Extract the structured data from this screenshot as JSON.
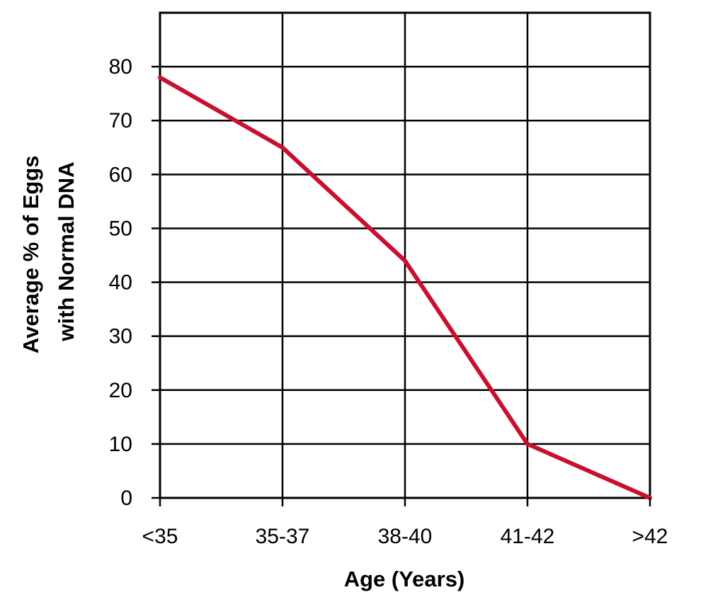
{
  "chart_data": {
    "type": "line",
    "title": "",
    "xlabel": "Age (Years)",
    "ylabel": [
      "Average % of Eggs",
      "with Normal DNA"
    ],
    "categories": [
      "<35",
      "35-37",
      "38-40",
      "41-42",
      ">42"
    ],
    "series": [
      {
        "values": [
          78,
          65,
          44,
          10,
          0
        ],
        "color": "#c8102e"
      }
    ],
    "ylim": [
      0,
      90
    ],
    "yticks": [
      0,
      10,
      20,
      30,
      40,
      50,
      60,
      70,
      80
    ],
    "grid": true,
    "legend": "none"
  }
}
